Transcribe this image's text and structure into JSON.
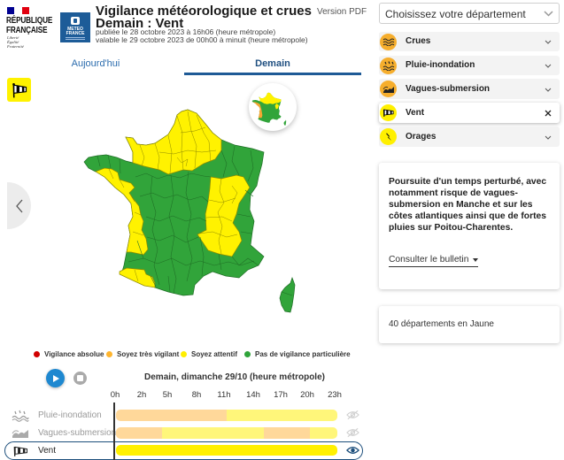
{
  "header": {
    "republique_line1": "RÉPUBLIQUE",
    "republique_line2": "FRANÇAISE",
    "motto": [
      "Liberté",
      "Égalité",
      "Fraternité"
    ],
    "meteo_logo_line1": "METEO",
    "meteo_logo_line2": "FRANCE",
    "title": "Vigilance météorologique et crues",
    "subtitle": "Demain : Vent",
    "published": "publiée le 28 octobre 2023 à 16h06 (heure métropole)",
    "valid": "valable le 29 octobre 2023 de 00h00 à minuit (heure métropole)",
    "pdf_link": "Version PDF"
  },
  "tabs": [
    {
      "label": "Aujourd'hui",
      "active": false
    },
    {
      "label": "Demain",
      "active": true
    }
  ],
  "map": {
    "phenomenon_icon": "windsock-icon",
    "colors": {
      "green": "#31a43a",
      "yellow": "#fff200",
      "orange": "#f7a632",
      "border_green": "#1f6e25",
      "border_yellow": "#8f8a00"
    }
  },
  "legend": [
    {
      "label": "Vigilance absolue",
      "color": "#d10000"
    },
    {
      "label": "Soyez très vigilant",
      "color": "#ffb52e"
    },
    {
      "label": "Soyez attentif",
      "color": "#ffee00"
    },
    {
      "label": "Pas de vigilance particulière",
      "color": "#2fa43a"
    }
  ],
  "timeline": {
    "day_label": "Demain, dimanche 29/10 (heure métropole)",
    "hours": [
      "0h",
      "2h",
      "5h",
      "8h",
      "11h",
      "14h",
      "17h",
      "20h",
      "23h"
    ],
    "colors": {
      "orange_light": "#ffd89a",
      "yellow_light": "#fff67a",
      "yellow": "#fff000"
    },
    "rows": [
      {
        "label": "Pluie-inondation",
        "active": false,
        "visible": false,
        "segments": [
          {
            "start": 0,
            "end": 12,
            "color": "orange_light"
          },
          {
            "start": 12,
            "end": 24,
            "color": "yellow_light"
          }
        ]
      },
      {
        "label": "Vagues-submersion",
        "active": false,
        "visible": false,
        "segments": [
          {
            "start": 0,
            "end": 5,
            "color": "orange_light"
          },
          {
            "start": 5,
            "end": 16,
            "color": "yellow_light"
          },
          {
            "start": 16,
            "end": 21,
            "color": "orange_light"
          },
          {
            "start": 21,
            "end": 24,
            "color": "yellow_light"
          }
        ]
      },
      {
        "label": "Vent",
        "active": true,
        "visible": true,
        "segments": [
          {
            "start": 0,
            "end": 24,
            "color": "yellow"
          }
        ]
      }
    ]
  },
  "sidebar": {
    "department_placeholder": "Choisissez votre département",
    "phenomena": [
      {
        "label": "Crues",
        "level_color": "#f6ae2d",
        "icon": "crues-icon",
        "expanded": false
      },
      {
        "label": "Pluie-inondation",
        "level_color": "#f6ae2d",
        "icon": "rain-flood-icon",
        "expanded": false
      },
      {
        "label": "Vagues-submersion",
        "level_color": "#f6ae2d",
        "icon": "waves-icon",
        "expanded": false
      },
      {
        "label": "Vent",
        "level_color": "#fff000",
        "icon": "windsock-icon",
        "expanded": true
      },
      {
        "label": "Orages",
        "level_color": "#fff000",
        "icon": "lightning-icon",
        "expanded": false
      }
    ],
    "bulletin": {
      "text": "Poursuite d'un temps perturbé, avec notamment risque de vagues-submersion en Manche et sur les côtes atlantiques ainsi que de fortes pluies sur Poitou-Charentes.",
      "link": "Consulter le bulletin"
    },
    "count_text": "40 départements en Jaune"
  }
}
